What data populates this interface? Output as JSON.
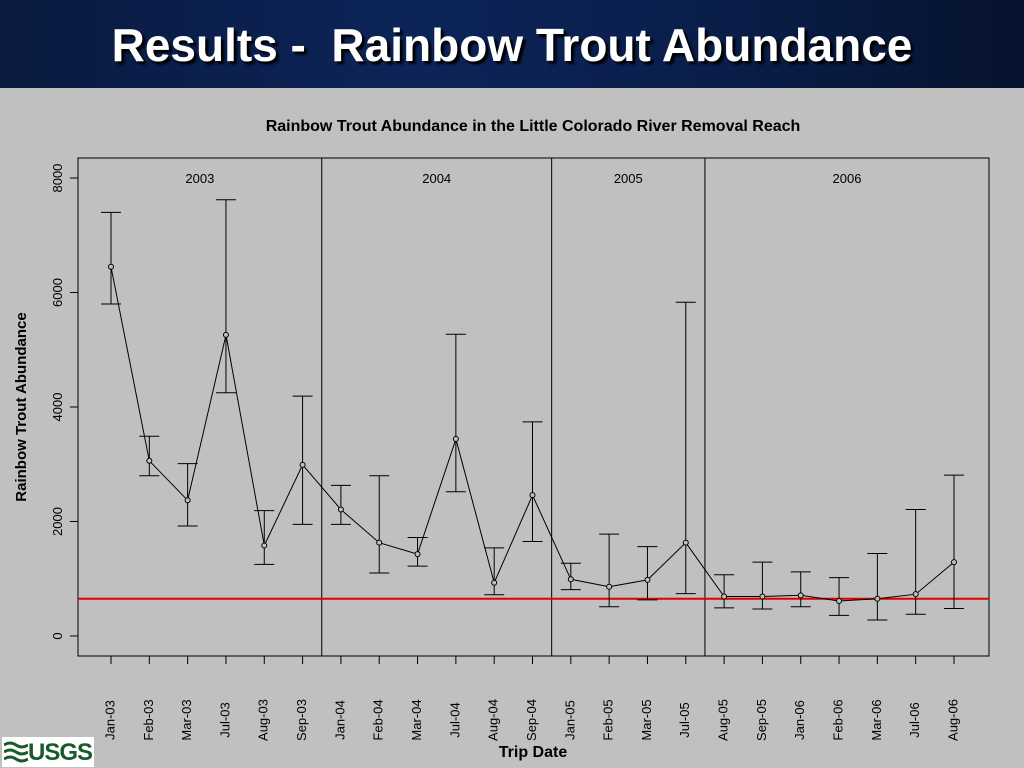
{
  "slide": {
    "title": "Results -  Rainbow Trout Abundance"
  },
  "logo": {
    "text": "USGS",
    "color": "#1a5a2a"
  },
  "colors": {
    "header_bg": "#0c2458",
    "slide_bg": "#c0c0c0",
    "reference_line": "#e00000"
  },
  "chart_data": {
    "type": "scatter",
    "title": "Rainbow Trout Abundance in the Little Colorado River Removal Reach",
    "xlabel": "Trip Date",
    "ylabel": "Rainbow Trout Abundance",
    "ylim": [
      -350,
      8350
    ],
    "yticks": [
      0,
      2000,
      4000,
      6000,
      8000
    ],
    "grid": false,
    "categories": [
      "Jan-03",
      "Feb-03",
      "Mar-03",
      "Jul-03",
      "Aug-03",
      "Sep-03",
      "Jan-04",
      "Feb-04",
      "Mar-04",
      "Jul-04",
      "Aug-04",
      "Sep-04",
      "Jan-05",
      "Feb-05",
      "Mar-05",
      "Jul-05",
      "Aug-05",
      "Sep-05",
      "Jan-06",
      "Feb-06",
      "Mar-06",
      "Jul-06",
      "Aug-06"
    ],
    "series": [
      {
        "values": [
          6450,
          3060,
          2370,
          5260,
          1580,
          2990,
          2210,
          1630,
          1430,
          3440,
          930,
          2460,
          990,
          860,
          980,
          1630,
          690,
          690,
          710,
          610,
          650,
          730,
          1290
        ],
        "lower": [
          5800,
          2800,
          1920,
          4250,
          1250,
          1950,
          1950,
          1100,
          1220,
          2520,
          720,
          1650,
          810,
          510,
          630,
          740,
          490,
          470,
          510,
          360,
          280,
          380,
          480
        ],
        "upper": [
          7400,
          3490,
          3010,
          7620,
          2190,
          4190,
          2630,
          2800,
          1720,
          5270,
          1540,
          3740,
          1270,
          1780,
          1560,
          5830,
          1070,
          1290,
          1120,
          1020,
          1440,
          2210,
          2810
        ]
      }
    ],
    "reference_line": {
      "value": 650,
      "color": "#e00000"
    },
    "year_labels": [
      "2003",
      "2004",
      "2005",
      "2006"
    ],
    "year_dividers_after": [
      "Sep-03",
      "Sep-04",
      "Jul-05"
    ]
  }
}
